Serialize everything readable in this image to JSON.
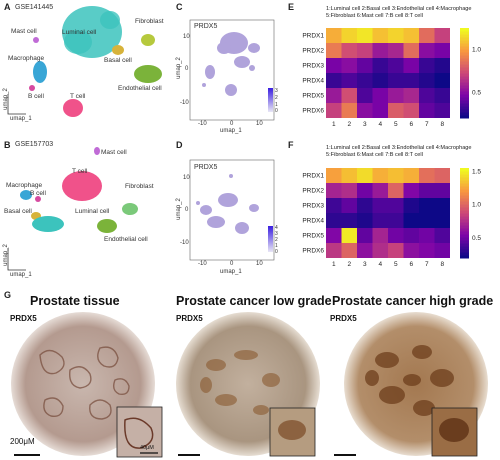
{
  "panels": {
    "A": {
      "letter": "A",
      "dataset": "GSE141445",
      "clusters": {
        "mast": "Mast cell",
        "luminal": "Luminal cell",
        "fibroblast": "Fibroblast",
        "macrophage": "Macrophage",
        "basal": "Basal cell",
        "endothelial": "Endothelial cell",
        "bcell": "B cell",
        "tcell": "T cell"
      },
      "axis_y": "umap_2",
      "axis_x": "umap_1"
    },
    "B": {
      "letter": "B",
      "dataset": "GSE157703",
      "clusters": {
        "mast": "Mast cell",
        "macrophage": "Macrophage",
        "tcell": "T cell",
        "fibroblast": "Fibroblast",
        "bcell": "B cell",
        "basal": "Basal cell",
        "luminal": "Luminal cell",
        "endothelial": "Endothelial cell"
      },
      "axis_y": "umap_2",
      "axis_x": "umap_1"
    },
    "C": {
      "letter": "C",
      "gene": "PRDX5",
      "ylabel": "umap_2",
      "xlabel": "umap_1",
      "xticks": [
        "-10",
        "0",
        "10"
      ],
      "yticks": [
        "10",
        "0",
        "-10"
      ],
      "cbar_ticks": [
        "3",
        "2",
        "1",
        "0"
      ]
    },
    "D": {
      "letter": "D",
      "gene": "PRDX5",
      "ylabel": "umap_2",
      "xlabel": "umap_1",
      "xticks": [
        "-10",
        "0",
        "10"
      ],
      "yticks": [
        "10",
        "0",
        "-10"
      ],
      "cbar_ticks": [
        "4",
        "3",
        "2",
        "1",
        "0"
      ]
    },
    "E": {
      "letter": "E",
      "legend_line1": "1:Luminal cell  2:Basal cell  3:Endothelial cell   4:Macrophage",
      "legend_line2": "5:Fibroblast    6:Mast cell    7:B cell     8:T cell"
    },
    "F": {
      "letter": "F",
      "legend_line1": "1:Luminal cell  2:Basal cell  3:Endothelial cell   4:Macrophage",
      "legend_line2": "5:Fibroblast    6:Mast cell    7:B cell     8:T cell"
    },
    "G": {
      "letter": "G",
      "tissues": [
        {
          "title": "Prostate tissue",
          "label": "PRDX5",
          "scale": "200μM",
          "inset_scale": "40μM"
        },
        {
          "title": "Prostate cancer low grade",
          "label": "PRDX5"
        },
        {
          "title": "Prostate cancer high grade",
          "label": "PRDX5"
        }
      ]
    }
  },
  "chart_data": [
    {
      "type": "heatmap",
      "panel": "E",
      "rows": [
        "PRDX1",
        "PRDX2",
        "PRDX3",
        "PRDX4",
        "PRDX5",
        "PRDX6"
      ],
      "columns": [
        "1",
        "2",
        "3",
        "4",
        "5",
        "6",
        "7",
        "8"
      ],
      "values": [
        [
          1.05,
          1.15,
          1.2,
          1.1,
          1.15,
          1.1,
          0.85,
          0.7
        ],
        [
          0.9,
          0.75,
          0.7,
          0.55,
          0.6,
          0.85,
          0.5,
          0.45
        ],
        [
          0.45,
          0.5,
          0.4,
          0.3,
          0.35,
          0.45,
          0.3,
          0.25
        ],
        [
          0.3,
          0.35,
          0.3,
          0.25,
          0.3,
          0.3,
          0.25,
          0.2
        ],
        [
          0.55,
          0.75,
          0.35,
          0.45,
          0.55,
          0.6,
          0.35,
          0.3
        ],
        [
          0.7,
          0.9,
          0.5,
          0.45,
          0.8,
          0.75,
          0.4,
          0.35
        ]
      ],
      "colorbar": {
        "ticks": [
          "1.0",
          "0.5"
        ],
        "range": [
          0.2,
          1.25
        ]
      }
    },
    {
      "type": "heatmap",
      "panel": "F",
      "rows": [
        "PRDX1",
        "PRDX2",
        "PRDX3",
        "PRDX4",
        "PRDX5",
        "PRDX6"
      ],
      "columns": [
        "1",
        "2",
        "3",
        "4",
        "5",
        "6",
        "7",
        "8"
      ],
      "values": [
        [
          1.25,
          1.35,
          1.45,
          1.3,
          1.35,
          1.3,
          1.05,
          1.0
        ],
        [
          0.7,
          0.75,
          0.5,
          0.65,
          1.0,
          0.55,
          0.45,
          0.45
        ],
        [
          0.35,
          0.45,
          0.3,
          0.4,
          0.4,
          0.25,
          0.2,
          0.2
        ],
        [
          0.3,
          0.3,
          0.25,
          0.35,
          0.35,
          0.2,
          0.2,
          0.2
        ],
        [
          0.55,
          1.5,
          0.45,
          0.7,
          0.5,
          0.45,
          0.5,
          0.4
        ],
        [
          0.8,
          1.0,
          0.6,
          0.75,
          0.85,
          0.6,
          0.55,
          0.5
        ]
      ],
      "colorbar": {
        "ticks": [
          "1.5",
          "1.0",
          "0.5"
        ],
        "range": [
          0.2,
          1.55
        ]
      }
    }
  ],
  "colors": {
    "luminal": "#3cc3bd",
    "fibroblast": "#b6c93d",
    "endothelial": "#7bb33a",
    "macrophage": "#39a6d6",
    "tcell": "#f0528a",
    "bcell": "#d64aa0",
    "mast": "#c06bd6",
    "basal": "#d7b33a"
  }
}
